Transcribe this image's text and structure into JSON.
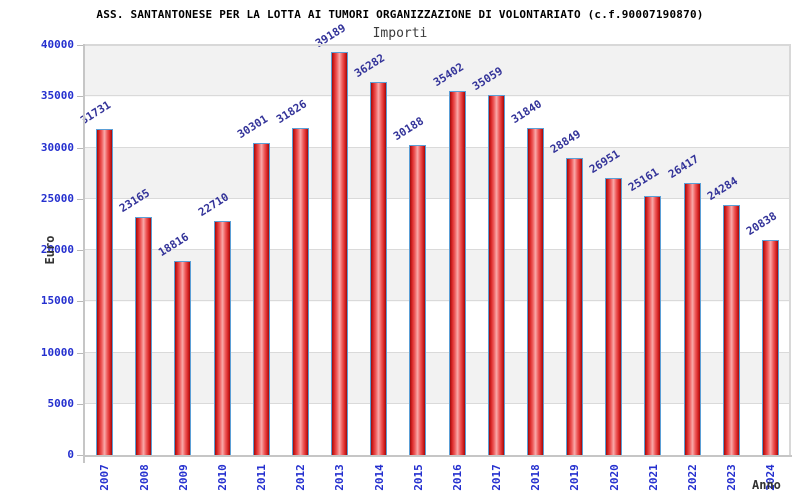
{
  "chart_data": {
    "type": "bar",
    "title": "ASS. SANTANTONESE PER LA LOTTA AI TUMORI ORGANIZZAZIONE DI VOLONTARIATO (c.f.90007190870)",
    "legend": "Importi",
    "xlabel": "Anno",
    "ylabel": "Euro",
    "categories": [
      "2007",
      "2008",
      "2009",
      "2010",
      "2011",
      "2012",
      "2013",
      "2014",
      "2015",
      "2016",
      "2017",
      "2018",
      "2019",
      "2020",
      "2021",
      "2022",
      "2023",
      "2024"
    ],
    "values": [
      31731,
      23165,
      18816,
      22710,
      30301,
      31826,
      39189,
      36282,
      30188,
      35402,
      35059,
      31840,
      28849,
      26951,
      25161,
      26417,
      24284,
      20838
    ],
    "ylim": [
      0,
      40000
    ],
    "ytick_step": 5000,
    "y_tick_labels": [
      "0",
      "5000",
      "10000",
      "15000",
      "20000",
      "25000",
      "30000",
      "35000",
      "40000"
    ],
    "grid": true,
    "legend_position": "top-center",
    "bands": "alternating horizontal gray/white stripes every 5000"
  },
  "colors": {
    "bar_edge": "#9e0b0b",
    "bar_mid": "#d92525",
    "bar_center": "#f9aaaa",
    "bar_border": "#5b9fd6",
    "axis_number_blue": "#2530cf",
    "value_label_navy": "#333399",
    "band_gray": "#f2f2f2",
    "band_white": "#ffffff",
    "grid_line": "#dadada",
    "axis_line": "#c6c6c6",
    "title_color": "#000000",
    "subtitle_color": "#3c3c3c",
    "axis_title_color": "#333333",
    "background": "#ffffff"
  }
}
